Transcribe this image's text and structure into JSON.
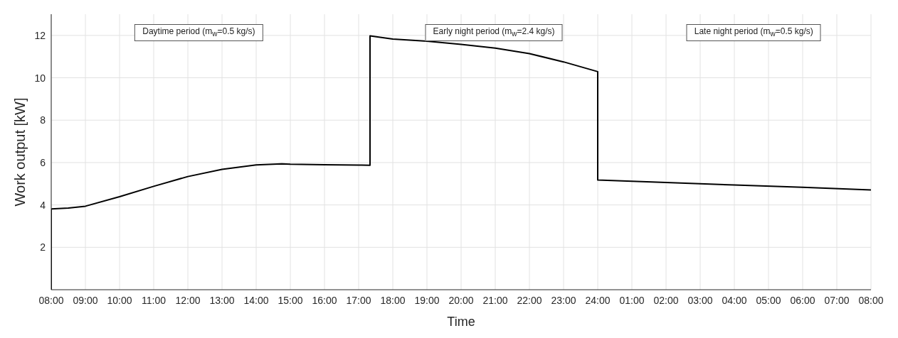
{
  "chart_data": {
    "type": "line",
    "xlabel": "Time",
    "ylabel": "Work output [kW]",
    "annotations": [
      "Daytime period (m$_{w}$=0.5 kg/s)",
      "Early night period (m$_{w}$=2.4 kg/s)",
      "Late night period (m$_{w}$=0.5 kg/s)"
    ],
    "series": [
      {
        "color": "#000000",
        "x": [
          "2000-01-01T08:00",
          "2000-01-01T08:00",
          "2000-01-01T08:30",
          "2000-01-01T09:00",
          "2000-01-01T10:00",
          "2000-01-01T11:00",
          "2000-01-01T12:00",
          "2000-01-01T13:00",
          "2000-01-01T14:00",
          "2000-01-01T14:45",
          "2000-01-01T15:00",
          "2000-01-01T16:00",
          "2000-01-01T17:00",
          "2000-01-01T17:20",
          "2000-01-01T17:20",
          "2000-01-01T18:00",
          "2000-01-01T19:00",
          "2000-01-01T20:00",
          "2000-01-01T21:00",
          "2000-01-01T22:00",
          "2000-01-01T23:00",
          "2000-01-02T00:00",
          "2000-01-02T00:00",
          "2000-01-02T02:00",
          "2000-01-02T04:00",
          "2000-01-02T06:00",
          "2000-01-02T08:00"
        ],
        "values": [
          0,
          3.81,
          3.85,
          3.94,
          4.39,
          4.88,
          5.34,
          5.68,
          5.89,
          5.94,
          5.92,
          5.9,
          5.88,
          5.87,
          11.98,
          11.83,
          11.73,
          11.58,
          11.4,
          11.14,
          10.75,
          10.29,
          5.18,
          5.06,
          4.94,
          4.83,
          4.71
        ]
      }
    ],
    "xlim": [
      "2000-01-01T08:00",
      "2000-01-02T08:00"
    ],
    "xticks": [
      {
        "value": "2000-01-01T08:00",
        "label": "08:00"
      },
      {
        "value": "2000-01-01T09:00",
        "label": "09:00"
      },
      {
        "value": "2000-01-01T10:00",
        "label": "10:00"
      },
      {
        "value": "2000-01-01T11:00",
        "label": "11:00"
      },
      {
        "value": "2000-01-01T12:00",
        "label": "12:00"
      },
      {
        "value": "2000-01-01T13:00",
        "label": "13:00"
      },
      {
        "value": "2000-01-01T14:00",
        "label": "14:00"
      },
      {
        "value": "2000-01-01T15:00",
        "label": "15:00"
      },
      {
        "value": "2000-01-01T16:00",
        "label": "16:00"
      },
      {
        "value": "2000-01-01T17:00",
        "label": "17:00"
      },
      {
        "value": "2000-01-01T18:00",
        "label": "18:00"
      },
      {
        "value": "2000-01-01T19:00",
        "label": "19:00"
      },
      {
        "value": "2000-01-01T20:00",
        "label": "20:00"
      },
      {
        "value": "2000-01-01T21:00",
        "label": "21:00"
      },
      {
        "value": "2000-01-01T22:00",
        "label": "22:00"
      },
      {
        "value": "2000-01-01T23:00",
        "label": "23:00"
      },
      {
        "value": "2000-01-02T00:00",
        "label": "24:00"
      },
      {
        "value": "2000-01-02T01:00",
        "label": "01:00"
      },
      {
        "value": "2000-01-02T02:00",
        "label": "02:00"
      },
      {
        "value": "2000-01-02T03:00",
        "label": "03:00"
      },
      {
        "value": "2000-01-02T04:00",
        "label": "04:00"
      },
      {
        "value": "2000-01-02T05:00",
        "label": "05:00"
      },
      {
        "value": "2000-01-02T06:00",
        "label": "06:00"
      },
      {
        "value": "2000-01-02T07:00",
        "label": "07:00"
      },
      {
        "value": "2000-01-02T08:00",
        "label": "08:00"
      }
    ],
    "ylim": [
      0,
      13
    ],
    "yticks": [
      2,
      4,
      6,
      8,
      10,
      12
    ],
    "grid": true,
    "marker": "none",
    "line_style": "solid"
  }
}
